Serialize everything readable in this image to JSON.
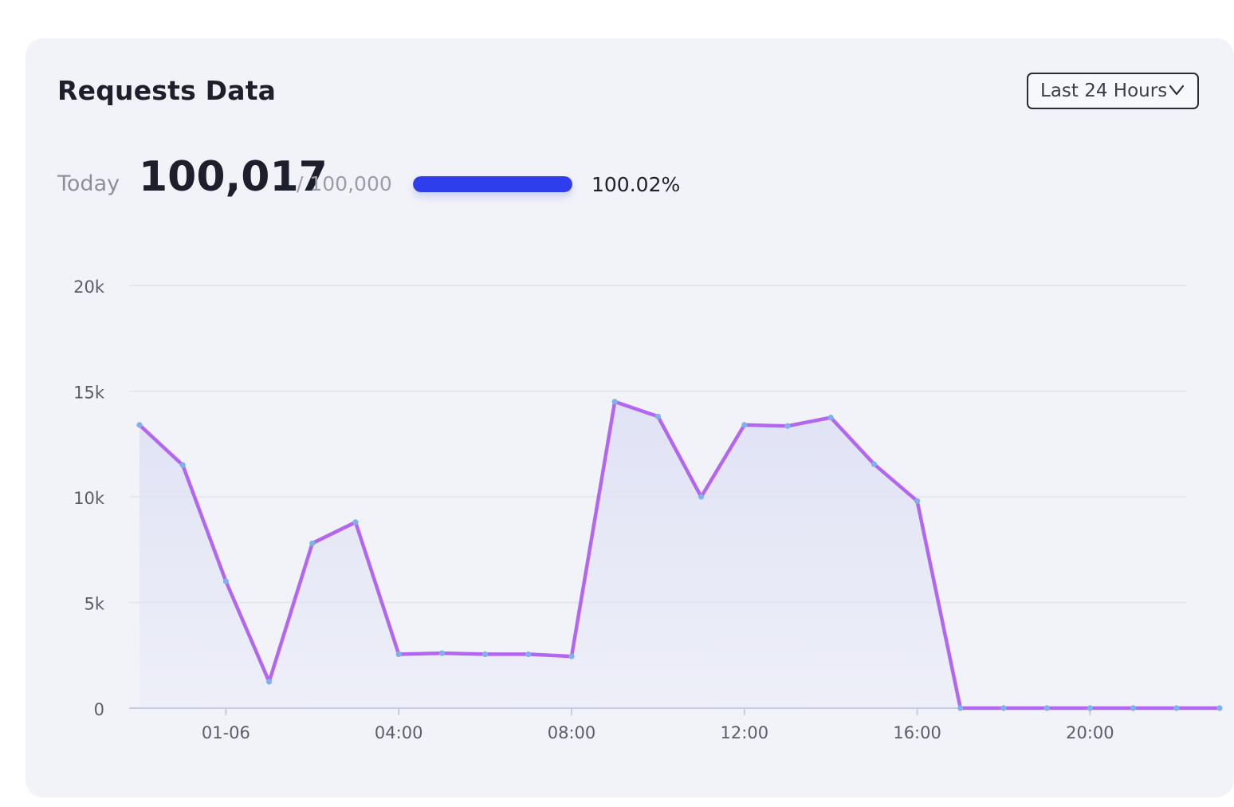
{
  "card": {
    "title": "Requests Data",
    "range_select": {
      "label": "Last 24 Hours",
      "icon": "chevron-down-icon"
    }
  },
  "stats": {
    "today_label": "Today",
    "today_value": "100,017",
    "quota_text": "/ 100,000",
    "progress_fraction": 1.0,
    "progress_percent_text": "100.02%"
  },
  "colors": {
    "card_bg": "#f2f3f9",
    "line": "#b266f2",
    "point": "#7fb2e8",
    "area_top": "#dfe2f5",
    "progress": "#2f3eec",
    "grid": "#e2e3ea",
    "axis": "#c6cae6"
  },
  "chart_data": {
    "type": "area",
    "y_tick_labels": [
      "0",
      "5k",
      "10k",
      "15k",
      "20k"
    ],
    "y_ticks": [
      0,
      5000,
      10000,
      15000,
      20000
    ],
    "ylim": [
      0,
      20000
    ],
    "x_tick_labels": [
      {
        "hour": 2,
        "label": "01-06"
      },
      {
        "hour": 6,
        "label": "04:00"
      },
      {
        "hour": 10,
        "label": "08:00"
      },
      {
        "hour": 14,
        "label": "12:00"
      },
      {
        "hour": 18,
        "label": "16:00"
      },
      {
        "hour": 22,
        "label": "20:00"
      }
    ],
    "grid": true,
    "legend": "none",
    "series": [
      {
        "x": [
          0,
          1,
          2,
          3,
          4,
          5,
          6,
          7,
          8,
          9,
          10,
          11,
          12,
          13,
          14,
          15,
          16,
          17,
          18,
          19,
          20,
          21,
          22,
          23,
          24,
          25
        ],
        "values": [
          13400,
          11500,
          6000,
          1250,
          7800,
          8800,
          2550,
          2600,
          2550,
          2550,
          2450,
          14500,
          13800,
          10000,
          13400,
          13350,
          13750,
          11550,
          9800,
          0,
          0,
          0,
          0,
          0,
          0,
          0
        ]
      }
    ]
  }
}
